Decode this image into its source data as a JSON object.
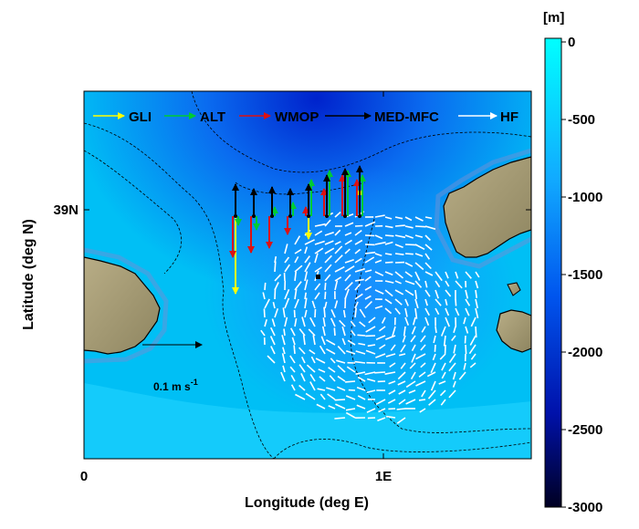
{
  "chart_data": {
    "type": "map",
    "xlabel": "Longitude (deg E)",
    "ylabel": "Latitude (deg N)",
    "x_ticks": [
      "0",
      "1E"
    ],
    "y_ticks": [
      "39N"
    ],
    "legend": [
      {
        "label": "GLI",
        "color": "#ffff00"
      },
      {
        "label": "ALT",
        "color": "#00cc33"
      },
      {
        "label": "WMOP",
        "color": "#dd1111"
      },
      {
        "label": "MED-MFC",
        "color": "#000000"
      },
      {
        "label": "HF",
        "color": "#ffffff"
      }
    ],
    "legend_position": "top",
    "colorbar": {
      "unit": "[m]",
      "ticks": [
        "0",
        "-500",
        "-1000",
        "-1500",
        "-2000",
        "-2500",
        "-3000"
      ],
      "range": [
        -3000,
        0
      ],
      "color_top": "#00ffff",
      "color_mid": "#0066ff",
      "color_bottom": "#000022"
    },
    "scale_label": "0.1 m s",
    "scale_exponent": "-1",
    "colors": {
      "land": "#a89f7a",
      "land_dark": "#7d7556",
      "shallow_sea": "#00ddff",
      "deep_sea": "#0033dd"
    }
  }
}
